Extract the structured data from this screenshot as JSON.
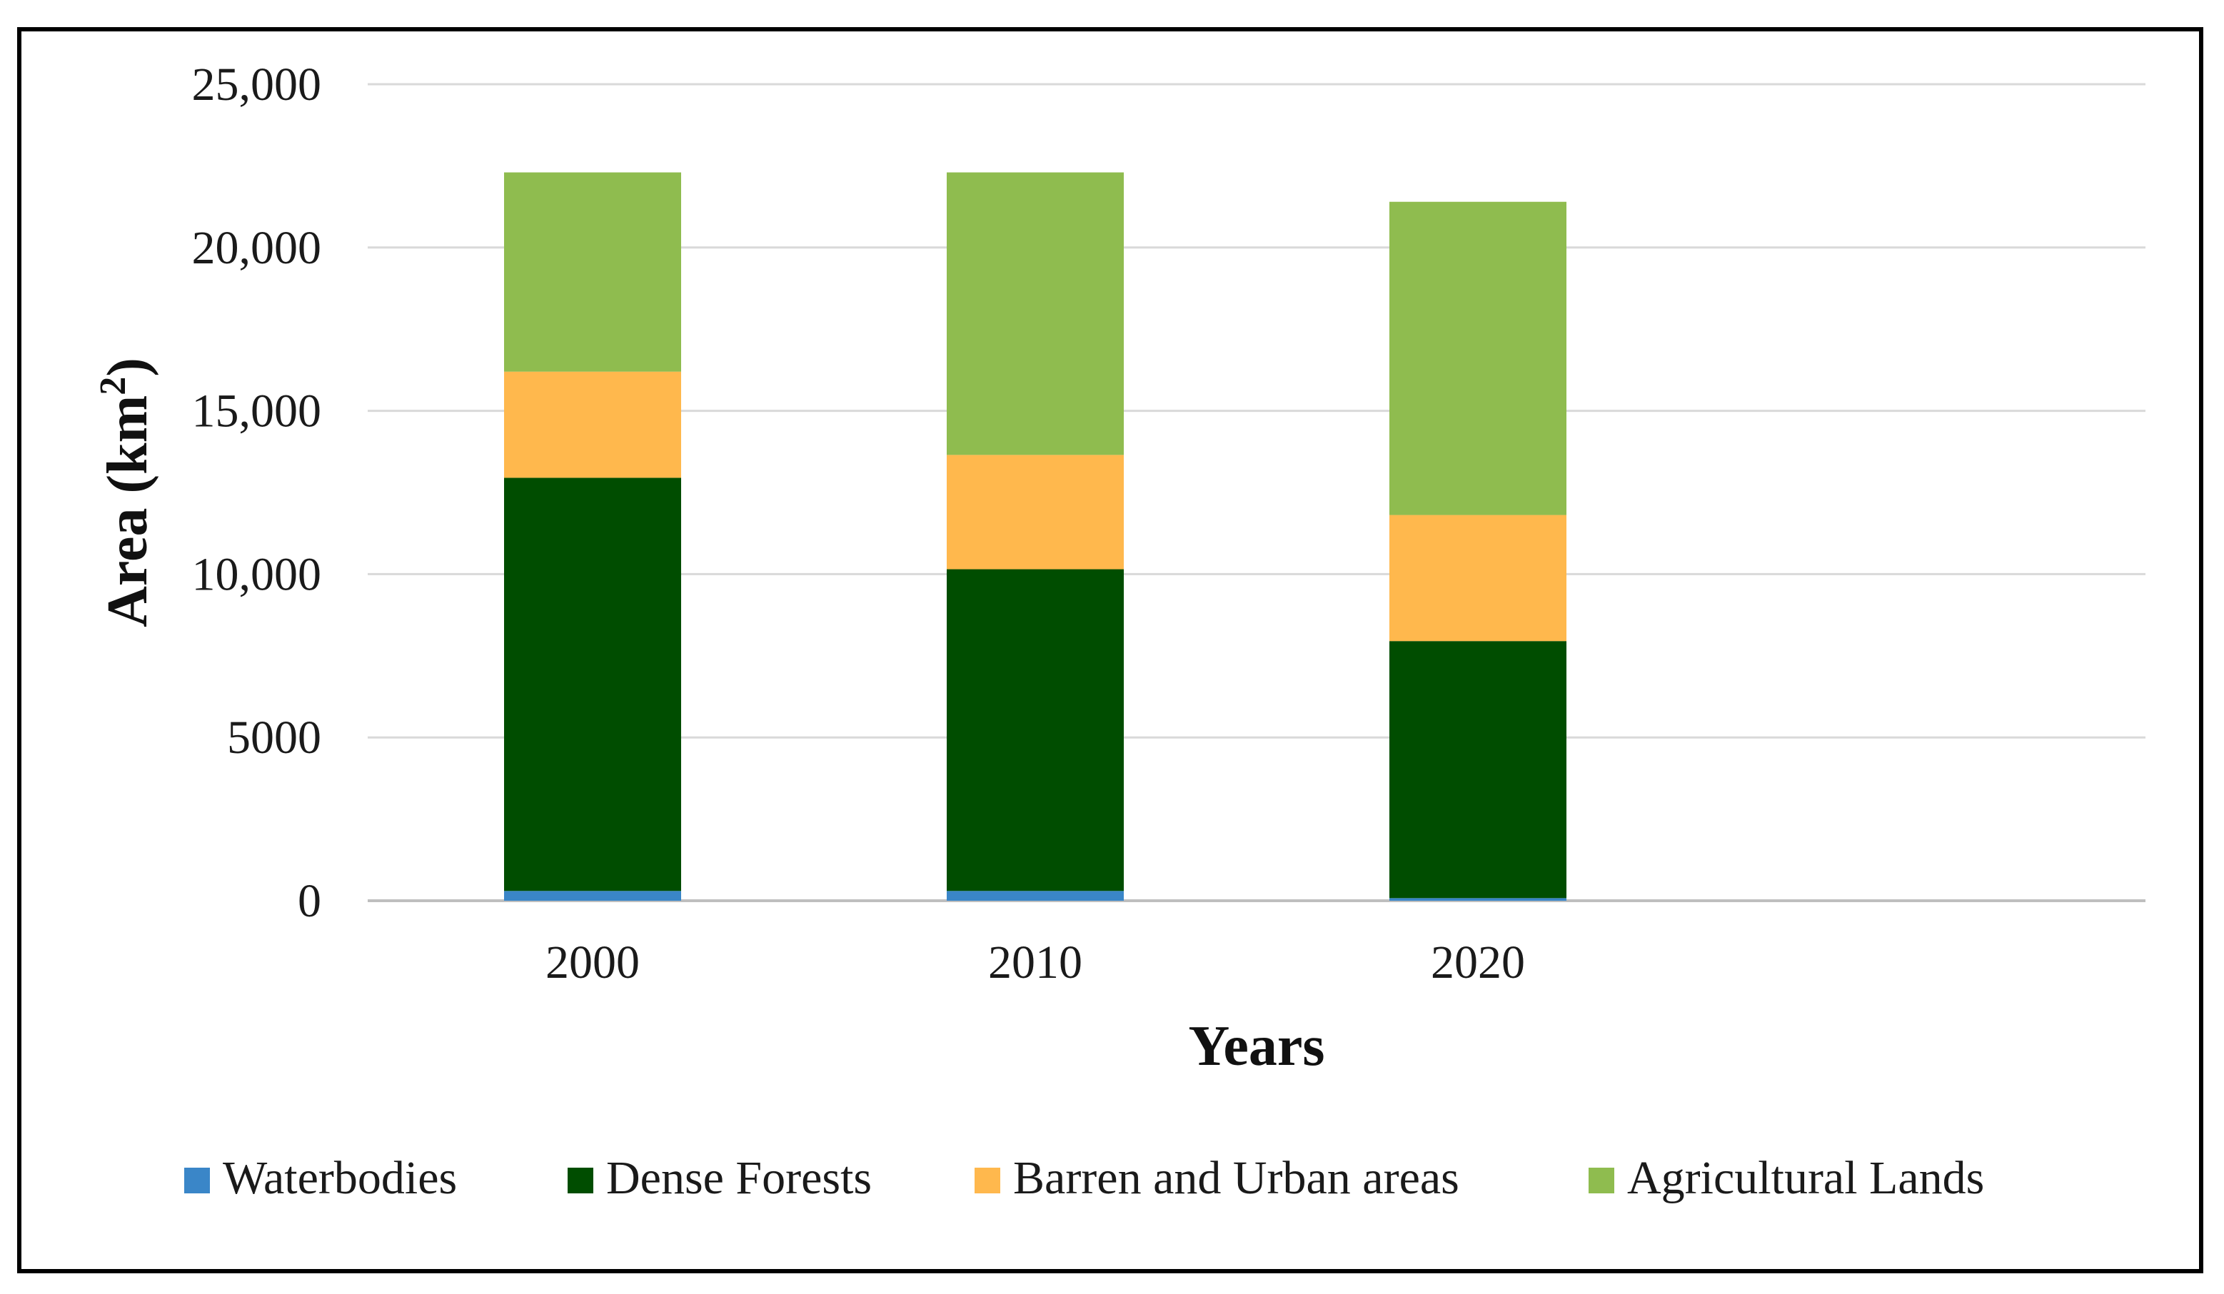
{
  "chart_data": {
    "type": "bar",
    "stacked": true,
    "title": "",
    "xlabel": "Years",
    "ylabel": "Area (km²)",
    "ylabel_main": "Area (km",
    "ylabel_sup": "2",
    "ylabel_close": ")",
    "ylim": [
      0,
      25000
    ],
    "yticks": [
      0,
      5000,
      10000,
      15000,
      20000,
      25000
    ],
    "ytick_labels": [
      "0",
      "5000",
      "10,000",
      "15,000",
      "20,000",
      "25,000"
    ],
    "grid": true,
    "legend_position": "bottom",
    "categories": [
      "2000",
      "2010",
      "2020"
    ],
    "series": [
      {
        "name": "Waterbodies",
        "color": "#3a86c8",
        "values": [
          300,
          300,
          80
        ]
      },
      {
        "name": "Dense Forests",
        "color": "#004d00",
        "values": [
          12650,
          9850,
          7870
        ]
      },
      {
        "name": "Barren and Urban areas",
        "color": "#ffb84d",
        "values": [
          3250,
          3500,
          3860
        ]
      },
      {
        "name": "Agricultural Lands",
        "color": "#8fbc4f",
        "values": [
          6100,
          8650,
          9590
        ]
      }
    ]
  }
}
